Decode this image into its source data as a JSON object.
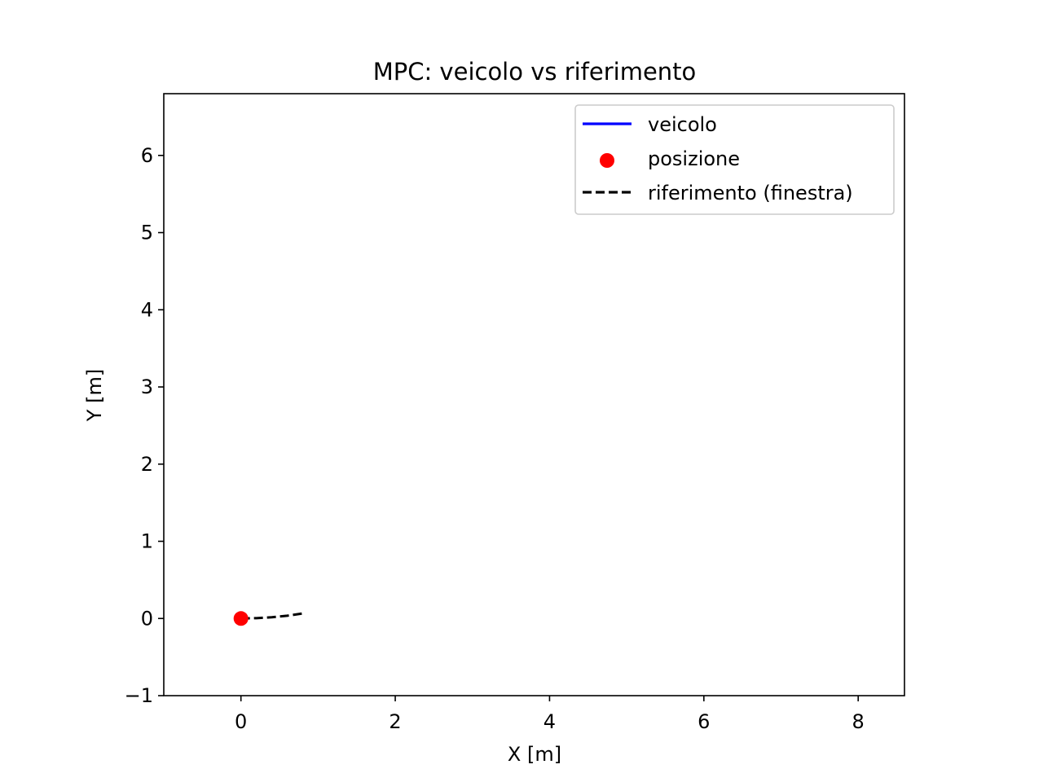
{
  "chart_data": {
    "type": "line",
    "title": "MPC: veicolo vs riferimento",
    "xlabel": "X [m]",
    "ylabel": "Y [m]",
    "xlim": [
      -1.0,
      8.6
    ],
    "ylim": [
      -1.0,
      6.8
    ],
    "xticks": [
      0,
      2,
      4,
      6,
      8
    ],
    "yticks": [
      -1,
      0,
      1,
      2,
      3,
      4,
      5,
      6
    ],
    "xtick_labels": [
      "0",
      "2",
      "4",
      "6",
      "8"
    ],
    "ytick_labels": [
      "−1",
      "0",
      "1",
      "2",
      "3",
      "4",
      "5",
      "6"
    ],
    "grid": false,
    "legend_position": "top-right",
    "series": [
      {
        "name": "veicolo",
        "kind": "line",
        "style": "solid",
        "color": "#0000ff",
        "points": [
          [
            0,
            0
          ]
        ]
      },
      {
        "name": "posizione",
        "kind": "scatter",
        "color": "#ff0000",
        "points": [
          [
            0,
            0
          ]
        ]
      },
      {
        "name": "riferimento (finestra)",
        "kind": "line",
        "style": "dashed",
        "color": "#000000",
        "points": [
          [
            0,
            0
          ],
          [
            0.2,
            0.004
          ],
          [
            0.4,
            0.016
          ],
          [
            0.6,
            0.036
          ],
          [
            0.8,
            0.065
          ]
        ]
      }
    ]
  }
}
